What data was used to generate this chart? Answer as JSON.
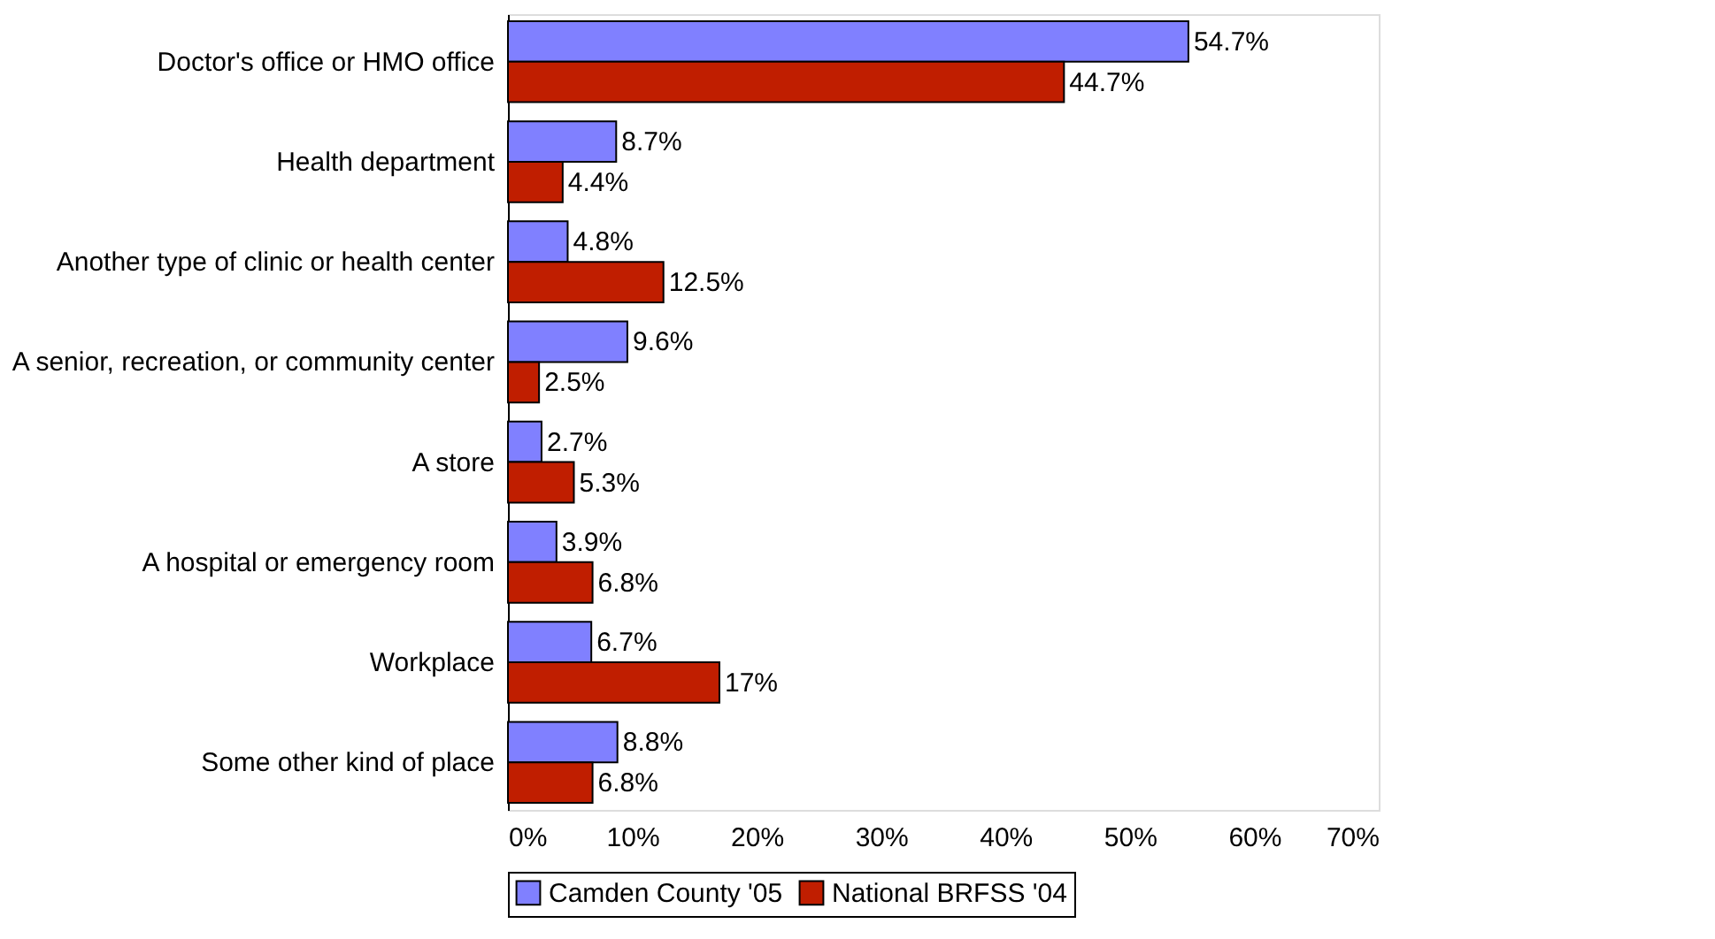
{
  "chart_data": {
    "type": "bar",
    "orientation": "horizontal",
    "categories": [
      "Doctor's office or HMO office",
      "Health department",
      "Another type of clinic or health center",
      "A senior, recreation, or community center",
      "A store",
      "A hospital or emergency room",
      "Workplace",
      "Some other kind of place"
    ],
    "series": [
      {
        "name": "Camden County '05",
        "color": "#8080ff",
        "values": [
          54.7,
          8.7,
          4.8,
          9.6,
          2.7,
          3.9,
          6.7,
          8.8
        ],
        "value_labels": [
          "54.7%",
          "8.7%",
          "4.8%",
          "9.6%",
          "2.7%",
          "3.9%",
          "6.7%",
          "8.8%"
        ]
      },
      {
        "name": "National BRFSS '04",
        "color": "#c01e00",
        "values": [
          44.7,
          4.4,
          12.5,
          2.5,
          5.3,
          6.8,
          17,
          6.8
        ],
        "value_labels": [
          "44.7%",
          "4.4%",
          "12.5%",
          "2.5%",
          "5.3%",
          "6.8%",
          "17%",
          "6.8%"
        ]
      }
    ],
    "xlim": [
      0,
      70
    ],
    "xticks": [
      {
        "value": 0,
        "label": "0%"
      },
      {
        "value": 10,
        "label": "10%"
      },
      {
        "value": 20,
        "label": "20%"
      },
      {
        "value": 30,
        "label": "30%"
      },
      {
        "value": 40,
        "label": "40%"
      },
      {
        "value": 50,
        "label": "50%"
      },
      {
        "value": 60,
        "label": "60%"
      },
      {
        "value": 70,
        "label": "70%"
      }
    ],
    "grid": false,
    "legend": "bottom"
  }
}
